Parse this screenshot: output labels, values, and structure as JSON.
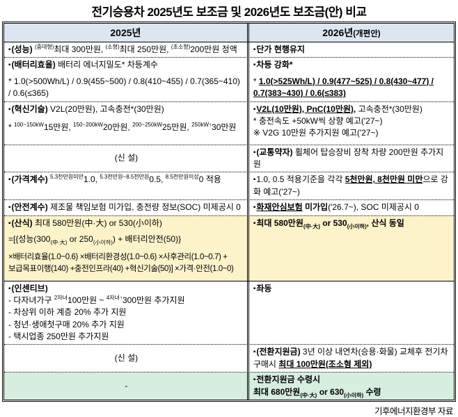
{
  "title": "전기승용차 2025년도 보조금 및 2026년도 보조금(안) 비교",
  "source_note": "기후에너지환경부 자료",
  "bullet": "▪",
  "colors": {
    "header_bg": "#dce6f1",
    "highlight_yellow": "#fdf3cb",
    "highlight_green": "#d6ede0",
    "border": "#000000"
  },
  "header": {
    "left": "2025년",
    "right": "2026년",
    "right_suffix": "(개편안)"
  },
  "rows": {
    "performance": {
      "left": {
        "label": "(성능)",
        "sup1": "(중대형)",
        "seg1": "최대 300만원, ",
        "sup2": "(소형)",
        "seg2": "최대 250만원, ",
        "sup3": "(초소형)",
        "seg3": "200만원 정액"
      },
      "right": {
        "text": "단가 현행유지"
      }
    },
    "battery": {
      "left": {
        "label": "(배터리효율)",
        "seg1": "배터리 에너지밀도* 차등계수",
        "line2": "* 1.0(>500Wh/L) / 0.9(455~500) / 0.8(410~455) / 0.7(365~410) / 0.6(≤365)"
      },
      "right": {
        "line1": "차등 강화*",
        "line2_prefix": "* ",
        "line2": "1.0(>525Wh/L) / 0.9(477~525) / 0.8(430~477) / 0.7(383~430) / 0.6(≤383)"
      }
    },
    "innovation": {
      "left": {
        "label": "(혁신기술)",
        "seg1": "V2L(20만원), 고속충전*(30만원)",
        "line2_prefix": "* ",
        "sup1": "100~150kW",
        "seg2": "15만원, ",
        "sup2": "150~200kW",
        "seg3": "20만원, ",
        "sup3": "200~250kW",
        "seg4": "25만원, ",
        "sup4": "250kW↑",
        "seg5": "30만원"
      },
      "right": {
        "u1": "V2L(10만원), PnC(10만원),",
        "seg1": " 고속충전*(30만원)",
        "line2": "* 충전속도 +50kW씩 상향 예고('27~)",
        "line3": "※ V2G 10만원 추가지원 예고('27~)"
      }
    },
    "new1": {
      "left": {
        "text": "(신 설)"
      },
      "right": {
        "label": "(교통약자)",
        "seg1": " 휠체어 탑승장비 장착 차량 200만원 추가지원"
      }
    },
    "price": {
      "left": {
        "label": "(가격계수)",
        "sup1": "5.3천만원미만",
        "seg1": "1.0, ",
        "sup2": "5.3천만원~8.5천만원",
        "seg2": "0.5, ",
        "sup3": "8.5천만원이상",
        "seg3": "0 적용"
      },
      "right": {
        "seg1": "1.0, 0.5 적용기준을 각각 ",
        "u1": "5천만원, 8천만원 미만",
        "seg2": "으로 강화 예고('27~)"
      }
    },
    "safety": {
      "left": {
        "label": "(안전계수)",
        "seg1": " 제조물 책임보험 미가입, 충전량 정보(SOC) 미제공시 0"
      },
      "right": {
        "u1": "화재안심보험",
        "b1": " 미가입",
        "seg1": "('26.7~), SOC 미제공시 0"
      }
    },
    "formula": {
      "left": {
        "label": "(산식)",
        "seg1": " 최대 580만원(中·大) or 530(小이하)",
        "line2_pre": "=[{성능(300",
        "sub1": "(中·大)",
        "line2_mid": " or 250",
        "sub2": "(小이하)",
        "line2_post": ") + 배터리안전(50)}",
        "line3": "×배터리효율(1.0~0.6)  ×배터리환경성(1.0~0.6)  ×사후관리(1.0~0.7) +",
        "line4": "보급목표이행(140) +충전인프라(40) +혁신기술(50)] ×가격·안전(1.0~0)"
      },
      "right": {
        "seg1": "최대 580만원",
        "sub1": "(中·大)",
        "seg2": " or 530",
        "sub2": "(小이하)",
        "seg3": ", 산식 동일"
      }
    },
    "incentive": {
      "left": {
        "label": "(인센티브)",
        "item1_pre": "- 다자녀가구 ",
        "sup1": "2자녀",
        "item1_mid": "100만원 ~ ",
        "sup2": "4자녀↑",
        "item1_post": "300만원 추가지원",
        "item2": "- 차상위 이하 계층 20% 추가 지원",
        "item3": "- 청년·생애첫구매 20% 추가 지원",
        "item4": "- 택시업종 250만원 추가지원"
      },
      "right": {
        "text": "좌동"
      }
    },
    "new2": {
      "left": {
        "text": "(신 설)"
      },
      "right": {
        "label": "(전환지원금)",
        "seg1": " 3년 이상 내연차(승용·화물) 교체후 전기차 구매시 ",
        "u1": "최대 100만원(조소형 제외)"
      }
    },
    "conversion": {
      "left": {
        "text": "-"
      },
      "right": {
        "line1": "전환지원금 수령시",
        "line2_pre": "최대 680만원",
        "sub1": "(中·大)",
        "line2_mid": " or 630",
        "sub2": "(小이하)",
        "line2_post": " 수령"
      }
    }
  }
}
